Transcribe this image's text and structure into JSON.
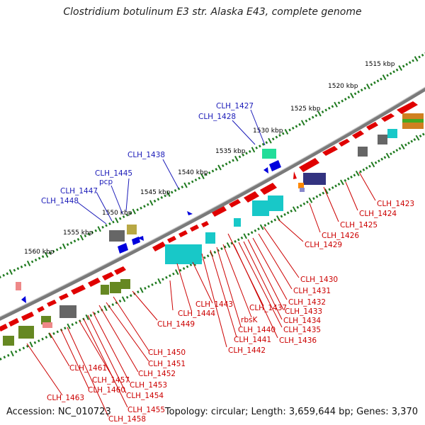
{
  "title": "Clostridium botulinum E3 str. Alaska E43, complete genome",
  "footer": {
    "accession": "Accession: NC_010723",
    "summary": "Topology: circular; Length: 3,659,644 bp; Genes: 3,370"
  },
  "scale_labels": [
    "1515 kbp",
    "1520 kbp",
    "1525 kbp",
    "1530 kbp",
    "1535 kbp",
    "1540 kbp",
    "1545 kbp",
    "1550 kbp",
    "1555 kbp",
    "1560 kbp"
  ],
  "upper_gene_labels": [
    "CLH_1427",
    "CLH_1428",
    "CLH_1438",
    "CLH_1445",
    "pcp",
    "CLH_1447",
    "CLH_1448"
  ],
  "lower_gene_labels": [
    "CLH_1423",
    "CLH_1424",
    "CLH_1425",
    "CLH_1426",
    "CLH_1429",
    "CLH_1430",
    "CLH_1431",
    "CLH_1432",
    "CLH_1433",
    "CLH_1434",
    "CLH_1435",
    "CLH_1436",
    "CLH_1437",
    "rbsK",
    "CLH_1440",
    "CLH_1441",
    "CLH_1442",
    "CLH_1443",
    "CLH_1444",
    "CLH_1449",
    "CLH_1450",
    "CLH_1451",
    "CLH_1452",
    "CLH_1453",
    "CLH_1454",
    "CLH_1455",
    "CLH_1457",
    "CLH_1458",
    "CLH_1460",
    "CLH_1461",
    "CLH_1463"
  ],
  "colors": {
    "upper_label": "#1a1ab8",
    "lower_label": "#cc0000",
    "tick": "#1f7a1f",
    "backbone": "#777777",
    "forward_gene": "#e00000",
    "reverse_gene": "#0000dd",
    "rna_cluster": "#18c8c8"
  }
}
